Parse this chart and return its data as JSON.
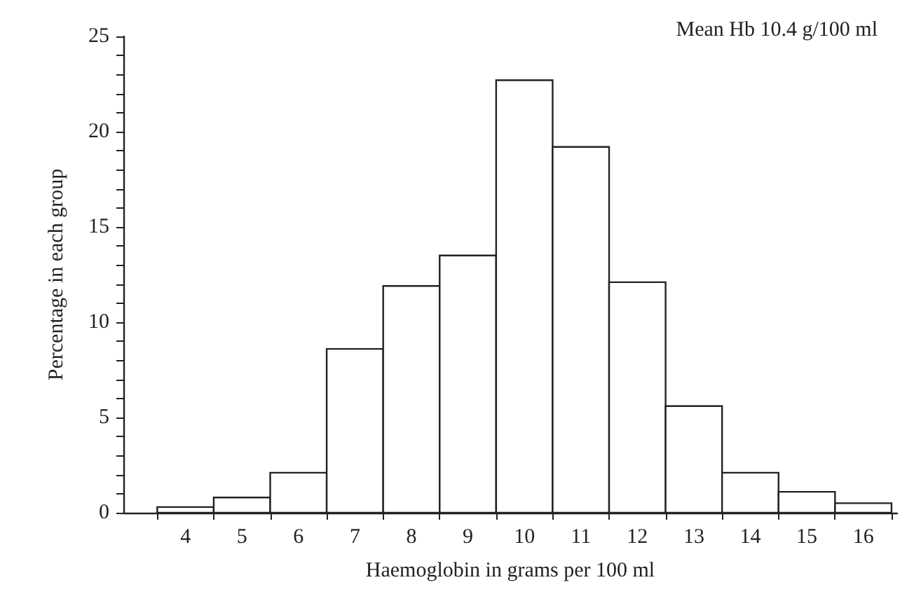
{
  "chart_data": {
    "type": "histogram",
    "xlabel": "Haemoglobin in grams per 100 ml",
    "ylabel": "Percentage in each group",
    "annotations": [
      "Mean Hb 10.4 g/100 ml"
    ],
    "bins": [
      3.5,
      4.5,
      5.5,
      6.5,
      7.5,
      8.5,
      9.5,
      10.5,
      11.5,
      12.5,
      13.5,
      14.5,
      15.5,
      16.5
    ],
    "values": [
      0.3,
      0.8,
      2.1,
      8.6,
      11.9,
      13.5,
      22.7,
      19.2,
      12.1,
      5.6,
      2.1,
      1.1,
      0.5
    ],
    "color": "#ffffff",
    "xlim": [
      2.9,
      16.6
    ],
    "xticks": [
      {
        "value": 3.5,
        "label": null
      },
      4,
      {
        "value": 4.5,
        "label": null
      },
      5,
      {
        "value": 5.5,
        "label": null
      },
      6,
      {
        "value": 6.5,
        "label": null
      },
      7,
      {
        "value": 7.5,
        "label": null
      },
      8,
      {
        "value": 8.5,
        "label": null
      },
      9,
      {
        "value": 9.5,
        "label": null
      },
      10,
      {
        "value": 10.5,
        "label": null
      },
      11,
      {
        "value": 11.5,
        "label": null
      },
      12,
      {
        "value": 12.5,
        "label": null
      },
      13,
      {
        "value": 13.5,
        "label": null
      },
      14,
      {
        "value": 14.5,
        "label": null
      },
      15,
      {
        "value": 15.5,
        "label": null
      },
      16,
      {
        "value": 16.5,
        "label": null
      }
    ],
    "ylim": [
      0,
      25
    ],
    "yticks": [
      0,
      {
        "value": 1,
        "label": null
      },
      {
        "value": 2,
        "label": null
      },
      {
        "value": 3,
        "label": null
      },
      {
        "value": 4,
        "label": null
      },
      5,
      {
        "value": 6,
        "label": null
      },
      {
        "value": 7,
        "label": null
      },
      {
        "value": 8,
        "label": null
      },
      {
        "value": 9,
        "label": null
      },
      10,
      {
        "value": 11,
        "label": null
      },
      {
        "value": 12,
        "label": null
      },
      {
        "value": 13,
        "label": null
      },
      {
        "value": 14,
        "label": null
      },
      15,
      {
        "value": 16,
        "label": null
      },
      {
        "value": 17,
        "label": null
      },
      {
        "value": 18,
        "label": null
      },
      {
        "value": 19,
        "label": null
      },
      20,
      {
        "value": 21,
        "label": null
      },
      {
        "value": 22,
        "label": null
      },
      {
        "value": 23,
        "label": null
      },
      {
        "value": 24,
        "label": null
      },
      25
    ],
    "grid": false
  }
}
